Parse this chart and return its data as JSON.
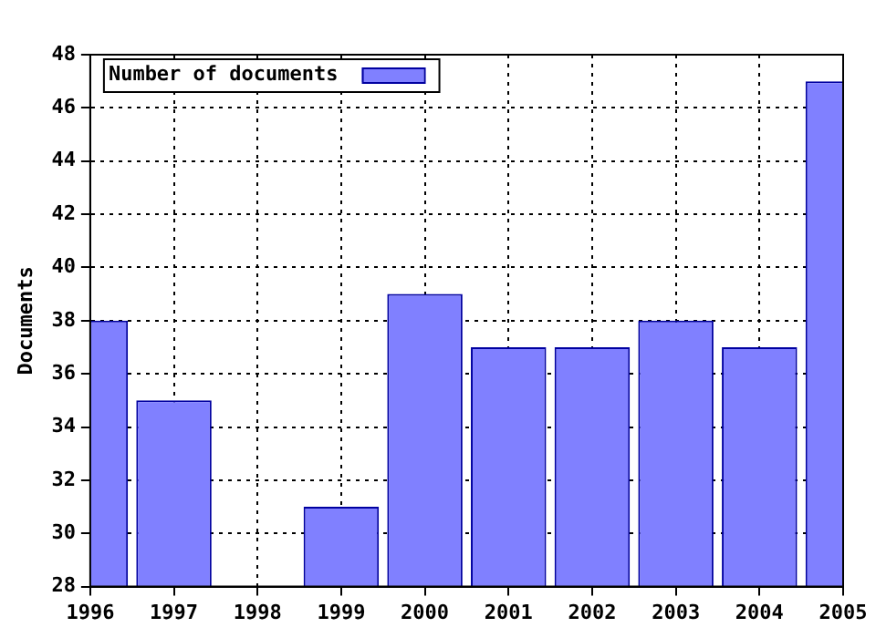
{
  "chart_data": {
    "type": "bar",
    "ylabel": "Documents",
    "x": [
      1996,
      1997,
      1998,
      1999,
      2000,
      2001,
      2002,
      2003,
      2004,
      2005
    ],
    "series": [
      {
        "name": "Number of documents",
        "color": "#8080ff",
        "values": [
          38,
          35,
          null,
          31,
          39,
          37,
          37,
          38,
          37,
          47
        ]
      }
    ],
    "xlim": [
      1996,
      2005
    ],
    "xticks": [
      1996,
      1997,
      1998,
      1999,
      2000,
      2001,
      2002,
      2003,
      2004,
      2005
    ],
    "ylim": [
      28,
      48
    ],
    "yticks": [
      28,
      30,
      32,
      34,
      36,
      38,
      40,
      42,
      44,
      46,
      48
    ],
    "grid": true,
    "legend": "top left"
  }
}
